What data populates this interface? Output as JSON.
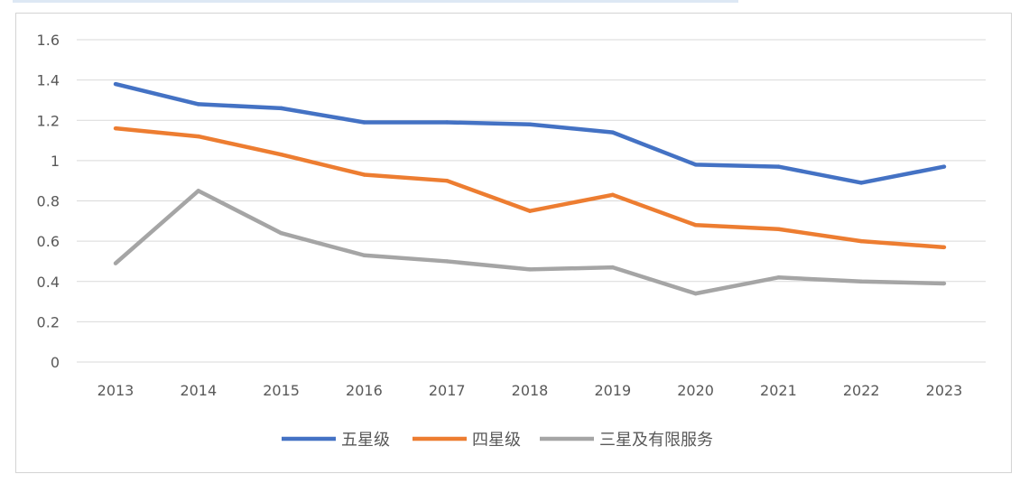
{
  "chart_data": {
    "type": "line",
    "categories": [
      "2013",
      "2014",
      "2015",
      "2016",
      "2017",
      "2018",
      "2019",
      "2020",
      "2021",
      "2022",
      "2023"
    ],
    "series": [
      {
        "name": "五星级",
        "color": "#4472c4",
        "values": [
          1.38,
          1.28,
          1.26,
          1.19,
          1.19,
          1.18,
          1.14,
          0.98,
          0.97,
          0.89,
          0.97
        ]
      },
      {
        "name": "四星级",
        "color": "#ed7d31",
        "values": [
          1.16,
          1.12,
          1.03,
          0.93,
          0.9,
          0.75,
          0.83,
          0.68,
          0.66,
          0.6,
          0.57
        ]
      },
      {
        "name": "三星及有限服务",
        "color": "#a5a5a5",
        "values": [
          0.49,
          0.85,
          0.64,
          0.53,
          0.5,
          0.46,
          0.47,
          0.34,
          0.42,
          0.4,
          0.39
        ]
      }
    ],
    "yticks": [
      "0",
      "0.2",
      "0.4",
      "0.6",
      "0.8",
      "1",
      "1.2",
      "1.4",
      "1.6"
    ],
    "ylim": [
      0,
      1.6
    ],
    "grid": true,
    "legend": "bottom-center",
    "title": "",
    "xlabel": "",
    "ylabel": ""
  }
}
